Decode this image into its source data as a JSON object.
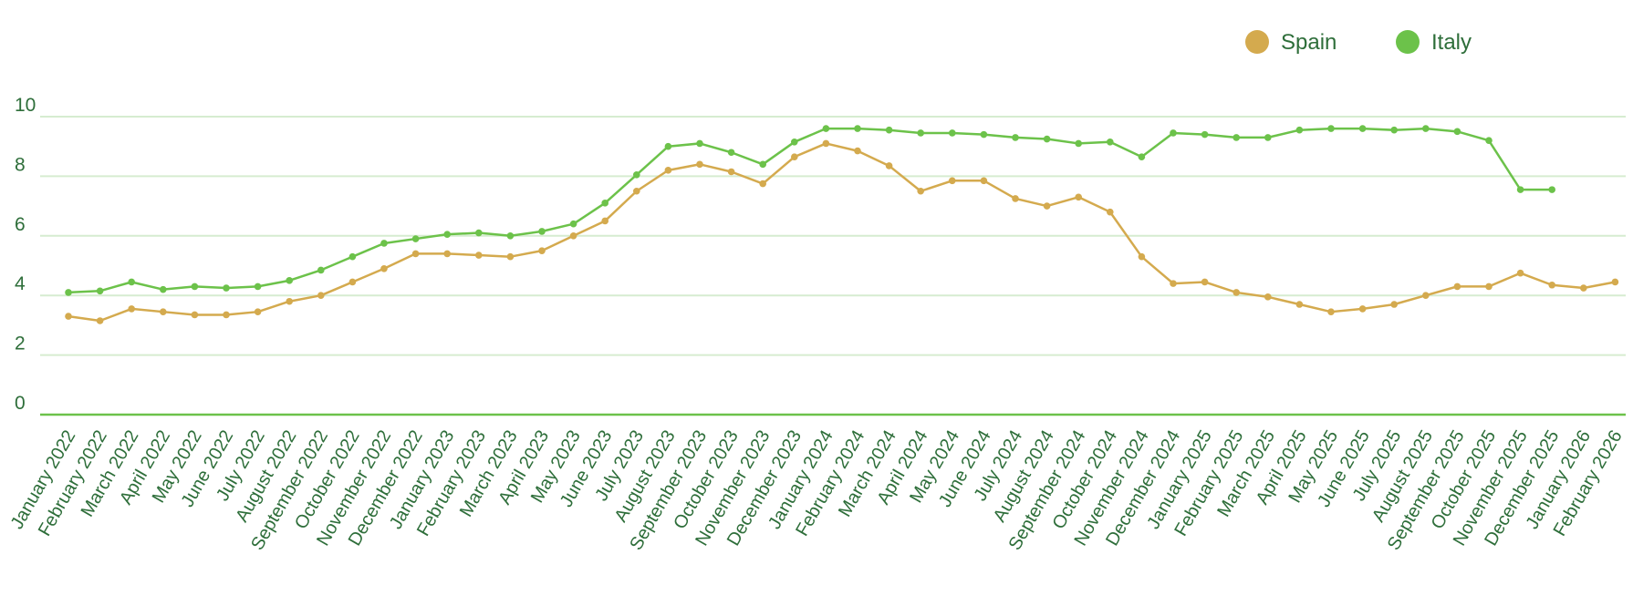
{
  "chart_data": {
    "type": "line",
    "title": "",
    "xlabel": "",
    "ylabel": "",
    "ylim": [
      0,
      10
    ],
    "yticks": [
      0,
      2,
      4,
      6,
      8,
      10
    ],
    "grid": true,
    "legend_position": "top-right",
    "categories": [
      "January 2022",
      "February 2022",
      "March 2022",
      "April 2022",
      "May 2022",
      "June 2022",
      "July 2022",
      "August 2022",
      "September 2022",
      "October 2022",
      "November 2022",
      "December 2022",
      "January 2023",
      "February 2023",
      "March 2023",
      "April 2023",
      "May 2023",
      "June 2023",
      "July 2023",
      "August 2023",
      "September 2023",
      "October 2023",
      "November 2023",
      "December 2023",
      "January 2024",
      "February 2024",
      "March 2024",
      "April 2024",
      "May 2024",
      "June 2024",
      "July 2024",
      "August 2024",
      "September 2024",
      "October 2024",
      "November 2024",
      "December 2024",
      "January 2025",
      "February 2025",
      "March 2025",
      "April 2025",
      "May 2025",
      "June 2025",
      "July 2025",
      "August 2025",
      "September 2025",
      "October 2025",
      "November 2025",
      "December 2025",
      "January 2026",
      "February 2026"
    ],
    "series": [
      {
        "name": "Spain",
        "color": "#d4aa4e",
        "values": [
          3.3,
          3.15,
          3.55,
          3.45,
          3.35,
          3.35,
          3.45,
          3.8,
          4.0,
          4.45,
          4.9,
          5.4,
          5.4,
          5.35,
          5.3,
          5.5,
          6.0,
          6.5,
          7.5,
          8.2,
          8.4,
          8.15,
          7.75,
          8.65,
          9.1,
          8.85,
          8.35,
          7.5,
          7.85,
          7.85,
          7.25,
          7.0,
          7.3,
          6.8,
          5.3,
          4.4,
          4.45,
          4.1,
          3.95,
          3.7,
          3.45,
          3.55,
          3.7,
          4.0,
          4.3,
          4.3,
          4.75,
          4.35,
          4.25,
          4.45
        ]
      },
      {
        "name": "Italy",
        "color": "#6cc24a",
        "values": [
          4.1,
          4.15,
          4.45,
          4.2,
          4.3,
          4.25,
          4.3,
          4.5,
          4.85,
          5.3,
          5.75,
          5.9,
          6.05,
          6.1,
          6.0,
          6.15,
          6.4,
          7.1,
          8.05,
          9.0,
          9.1,
          8.8,
          8.4,
          9.15,
          9.6,
          9.6,
          9.55,
          9.45,
          9.45,
          9.4,
          9.3,
          9.25,
          9.1,
          9.15,
          8.65,
          9.45,
          9.4,
          9.3,
          9.3,
          9.55,
          9.6,
          9.6,
          9.55,
          9.6,
          9.5,
          9.2,
          7.55,
          7.55,
          null,
          null
        ]
      }
    ]
  },
  "colors": {
    "grid": "#d6ecd0",
    "axis": "#6cc24a",
    "text": "#2e6e3a"
  }
}
